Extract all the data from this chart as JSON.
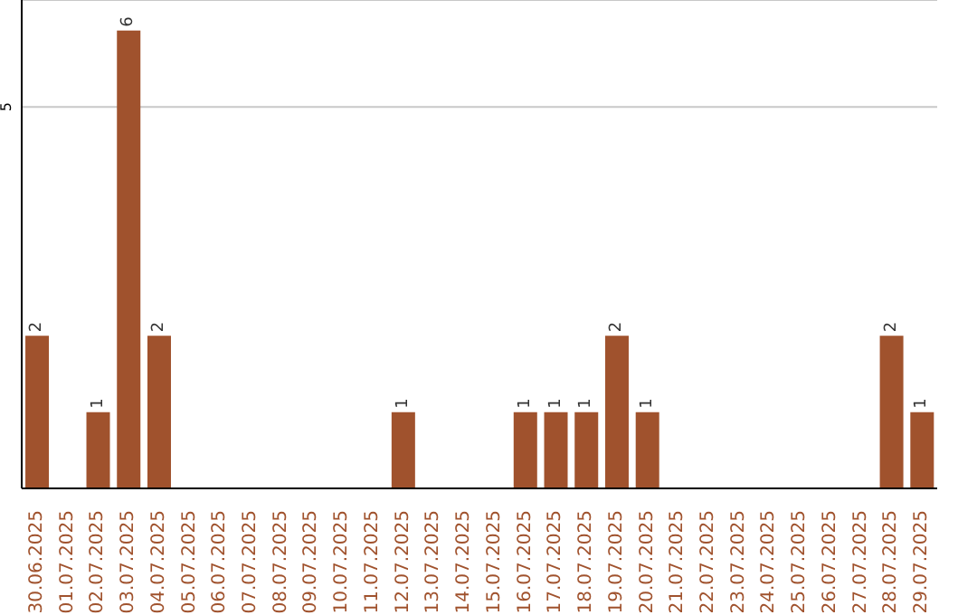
{
  "chart_data": {
    "type": "bar",
    "categories": [
      "30.06.2025",
      "01.07.2025",
      "02.07.2025",
      "03.07.2025",
      "04.07.2025",
      "05.07.2025",
      "06.07.2025",
      "07.07.2025",
      "08.07.2025",
      "09.07.2025",
      "10.07.2025",
      "11.07.2025",
      "12.07.2025",
      "13.07.2025",
      "14.07.2025",
      "15.07.2025",
      "16.07.2025",
      "17.07.2025",
      "18.07.2025",
      "19.07.2025",
      "20.07.2025",
      "21.07.2025",
      "22.07.2025",
      "23.07.2025",
      "24.07.2025",
      "25.07.2025",
      "26.07.2025",
      "27.07.2025",
      "28.07.2025",
      "29.07.2025"
    ],
    "values": [
      2,
      0,
      1,
      6,
      2,
      0,
      0,
      0,
      0,
      0,
      0,
      0,
      1,
      0,
      0,
      0,
      1,
      1,
      1,
      2,
      1,
      0,
      0,
      0,
      0,
      0,
      0,
      0,
      2,
      1
    ],
    "value_labels": [
      "2",
      null,
      "1",
      "6",
      "2",
      null,
      null,
      null,
      null,
      null,
      null,
      null,
      "1",
      null,
      null,
      null,
      "1",
      "1",
      "1",
      "2",
      "1",
      null,
      null,
      null,
      null,
      null,
      null,
      null,
      "2",
      "1"
    ],
    "color": "#a0522d",
    "ylim": [
      0,
      6.4
    ],
    "yticks": [
      5
    ],
    "grid": "y"
  }
}
